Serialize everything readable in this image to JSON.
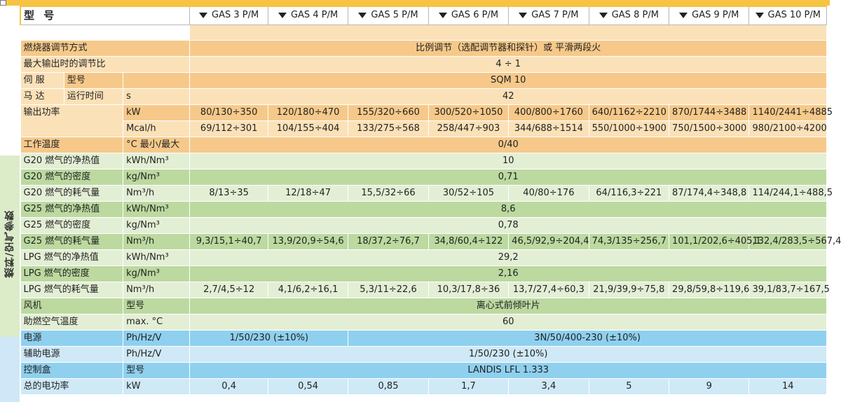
{
  "header": {
    "title": "型 号",
    "models": [
      "GAS 3 P/M",
      "GAS 4 P/M",
      "GAS 5 P/M",
      "GAS 6 P/M",
      "GAS 7 P/M",
      "GAS 8 P/M",
      "GAS 9 P/M",
      "GAS 10 P/M"
    ]
  },
  "side_label": "燃料/空气参数",
  "rows": {
    "regulation": {
      "label": "燃烧器调节方式",
      "value": "比例调节（选配调节器和探针）或 平滑两段火"
    },
    "turndown": {
      "label": "最大输出时的调节比",
      "value": "4 ÷ 1"
    },
    "servo_model": {
      "label_a": "伺 服",
      "label_b": "型号",
      "value": "SQM 10"
    },
    "servo_time": {
      "label_a": "马 达",
      "label_b": "运行时间",
      "unit": "s",
      "value": "42"
    },
    "output_kw": {
      "label": "输出功率",
      "unit": "kW",
      "values": [
        "80/130÷350",
        "120/180÷470",
        "155/320÷660",
        "300/520÷1050",
        "400/800÷1760",
        "640/1162÷2210",
        "870/1744÷3488",
        "1140/2441÷4885"
      ]
    },
    "output_mcal": {
      "unit": "Mcal/h",
      "values": [
        "69/112÷301",
        "104/155÷404",
        "133/275÷568",
        "258/447÷903",
        "344/688÷1514",
        "550/1000÷1900",
        "750/1500÷3000",
        "980/2100÷4200"
      ]
    },
    "work_temp": {
      "label": "工作温度",
      "unit": "°C 最小/最大",
      "value": "0/40"
    },
    "g20_ncv": {
      "label": "G20 燃气的净热值",
      "unit": "kWh/Nm³",
      "value": "10"
    },
    "g20_density": {
      "label": "G20 燃气的密度",
      "unit": "kg/Nm³",
      "value": "0,71"
    },
    "g20_cons": {
      "label": "G20 燃气的耗气量",
      "unit": "Nm³/h",
      "values": [
        "8/13÷35",
        "12/18÷47",
        "15,5/32÷66",
        "30/52÷105",
        "40/80÷176",
        "64/116,3÷221",
        "87/174,4÷348,8",
        "114/244,1÷488,5"
      ]
    },
    "g25_ncv": {
      "label": "G25 燃气的净热值",
      "unit": "kWh/Nm³",
      "value": "8,6"
    },
    "g25_density": {
      "label": "G25 燃气的密度",
      "unit": "kg/Nm³",
      "value": "0,78"
    },
    "g25_cons": {
      "label": "G25 燃气的耗气量",
      "unit": "Nm³/h",
      "values": [
        "9,3/15,1÷40,7",
        "13,9/20,9÷54,6",
        "18/37,2÷76,7",
        "34,8/60,4÷122",
        "46,5/92,9÷204,4",
        "74,3/135÷256,7",
        "101,1/202,6÷405,1",
        "132,4/283,5÷567,4"
      ]
    },
    "lpg_ncv": {
      "label": "LPG 燃气的净热值",
      "unit": "kWh/Nm³",
      "value": "29,2"
    },
    "lpg_density": {
      "label": "LPG 燃气的密度",
      "unit": "kg/Nm³",
      "value": "2,16"
    },
    "lpg_cons": {
      "label": "LPG 燃气的耗气量",
      "unit": "Nm³/h",
      "values": [
        "2,7/4,5÷12",
        "4,1/6,2÷16,1",
        "5,3/11÷22,6",
        "10,3/17,8÷36",
        "13,7/27,4÷60,3",
        "21,9/39,9÷75,8",
        "29,8/59,8÷119,6",
        "39,1/83,7÷167,5"
      ]
    },
    "fan": {
      "label": "风机",
      "unit": "型号",
      "value": "离心式前倾叶片"
    },
    "air_temp": {
      "label": "助燃空气温度",
      "unit": "max. °C",
      "value": "60"
    },
    "power": {
      "label": "电源",
      "unit": "Ph/Hz/V",
      "value_a": "1/50/230 (±10%)",
      "value_b": "3N/50/400-230 (±10%)"
    },
    "aux_power": {
      "label": "辅助电源",
      "unit": "Ph/Hz/V",
      "value": "1/50/230 (±10%)"
    },
    "control_box": {
      "label": "控制盒",
      "unit": "型号",
      "value": "LANDIS LFL 1.333"
    },
    "total_power": {
      "label": "总的电功率",
      "unit": "kW",
      "values": [
        "0,4",
        "0,54",
        "0,85",
        "1,7",
        "3,4",
        "5",
        "9",
        "14"
      ]
    }
  }
}
